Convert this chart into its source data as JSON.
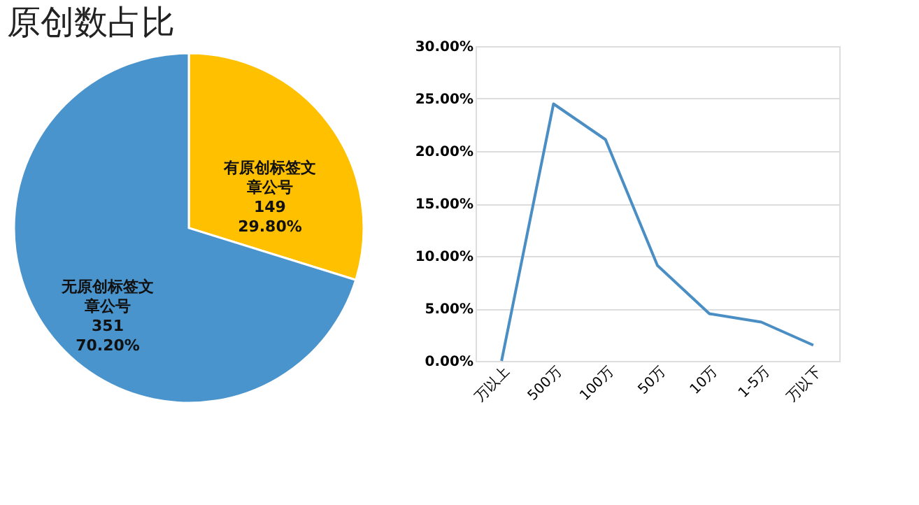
{
  "chart_data": [
    {
      "type": "pie",
      "title": "原创数占比",
      "categories": [
        "有原创标签文章公号",
        "无原创标签文章公号"
      ],
      "values": [
        149,
        351
      ],
      "colors": [
        "#ffc000",
        "#4a94cd"
      ],
      "value_labels": [
        "149\n29.80%",
        "351\n70.20%"
      ],
      "legend": false
    },
    {
      "type": "line",
      "categories": [
        "万以上",
        "500万",
        "100万",
        "50万",
        "10万",
        "1-5万",
        "万以下"
      ],
      "series": [
        {
          "color": "#4a8ec4",
          "values": [
            0,
            24.5,
            21.1,
            9.1,
            4.5,
            3.7,
            1.5
          ]
        }
      ],
      "ylim": [
        0,
        30
      ],
      "yticks": [
        {
          "value": 0,
          "label": "0.00%"
        },
        {
          "value": 5,
          "label": "5.00%"
        },
        {
          "value": 10,
          "label": "10.00%"
        },
        {
          "value": 15,
          "label": "15.00%"
        },
        {
          "value": 20,
          "label": "20.00%"
        },
        {
          "value": 25,
          "label": "25.00%"
        },
        {
          "value": 30,
          "label": "30.00%"
        }
      ],
      "grid": "y",
      "marker": "none",
      "line_style": "solid"
    }
  ]
}
